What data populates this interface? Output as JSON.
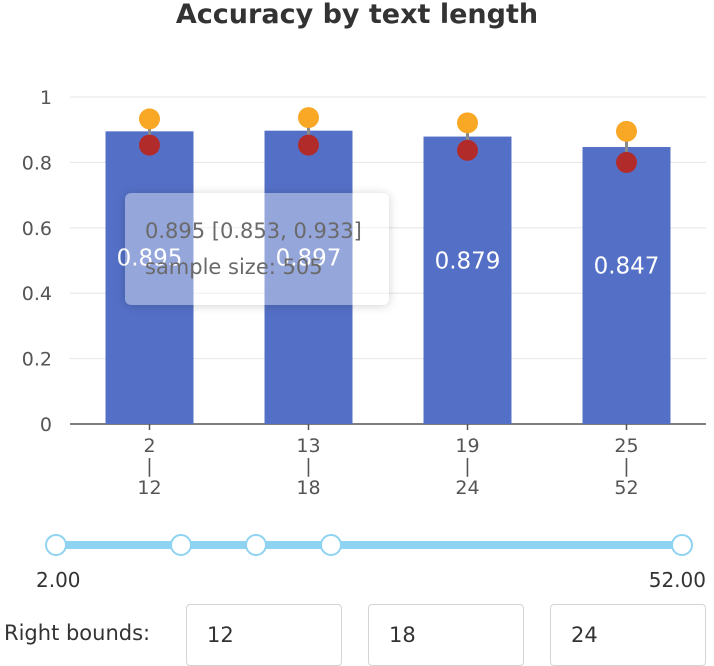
{
  "chart_data": {
    "type": "bar",
    "title": "Accuracy by text length",
    "categories": [
      {
        "low": "2",
        "sep": "|",
        "high": "12"
      },
      {
        "low": "13",
        "sep": "|",
        "high": "18"
      },
      {
        "low": "19",
        "sep": "|",
        "high": "24"
      },
      {
        "low": "25",
        "sep": "|",
        "high": "52"
      }
    ],
    "values": [
      0.895,
      0.897,
      0.879,
      0.847
    ],
    "data_labels": [
      "0.895",
      "0.897",
      "0.879",
      "0.847"
    ],
    "ci_upper": [
      0.933,
      0.937,
      0.921,
      0.895
    ],
    "ci_lower": [
      0.853,
      0.853,
      0.837,
      0.8
    ],
    "ylim": [
      0,
      1
    ],
    "yticks": [
      0,
      0.2,
      0.4,
      0.6,
      0.8,
      1
    ],
    "ytick_labels": [
      "0",
      "0.2",
      "0.4",
      "0.6",
      "0.8",
      "1"
    ],
    "grid": true,
    "colors": {
      "bar": "#5470c6",
      "upper": "#f9a825",
      "lower": "#b22b2b",
      "whisker": "#8a8a8a"
    }
  },
  "tooltip": {
    "line1": "0.895 [0.853, 0.933]",
    "line2": "sample size: 505"
  },
  "slider": {
    "min_label": "2.00",
    "max_label": "52.00",
    "min": 2,
    "max": 52,
    "handle_values": [
      2,
      12,
      18,
      24,
      52
    ],
    "color": "#8fd3f2"
  },
  "bounds": {
    "label": "Right bounds:",
    "values": [
      "12",
      "18",
      "24"
    ]
  }
}
